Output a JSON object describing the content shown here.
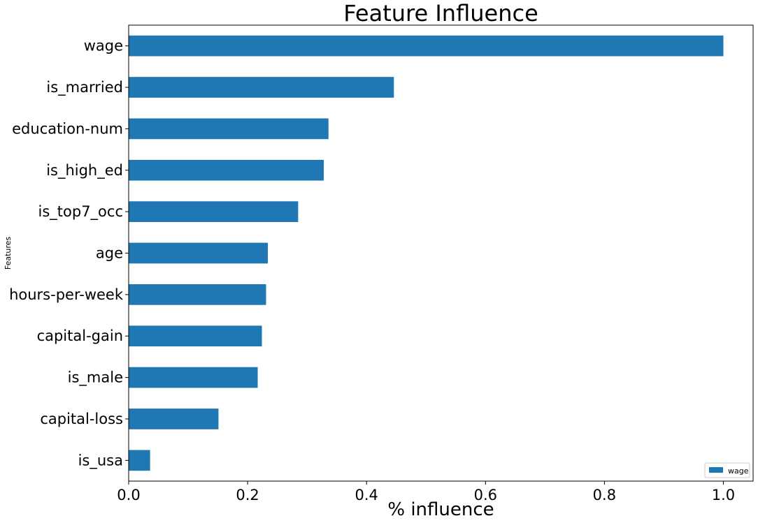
{
  "chart_data": {
    "type": "bar",
    "orientation": "horizontal",
    "title": "Feature Influence",
    "xlabel": "% influence",
    "ylabel": "Features",
    "categories": [
      "wage",
      "is_married",
      "education-num",
      "is_high_ed",
      "is_top7_occ",
      "age",
      "hours-per-week",
      "capital-gain",
      "is_male",
      "capital-loss",
      "is_usa"
    ],
    "series": [
      {
        "name": "wage",
        "values": [
          1.0,
          0.446,
          0.336,
          0.328,
          0.285,
          0.234,
          0.231,
          0.224,
          0.217,
          0.151,
          0.036
        ],
        "color": "#1f77b4"
      }
    ],
    "xlim": [
      0.0,
      1.05
    ],
    "xticks": [
      "0.0",
      "0.2",
      "0.4",
      "0.6",
      "0.8",
      "1.0"
    ],
    "grid": false,
    "legend_position": "bottom-right"
  }
}
